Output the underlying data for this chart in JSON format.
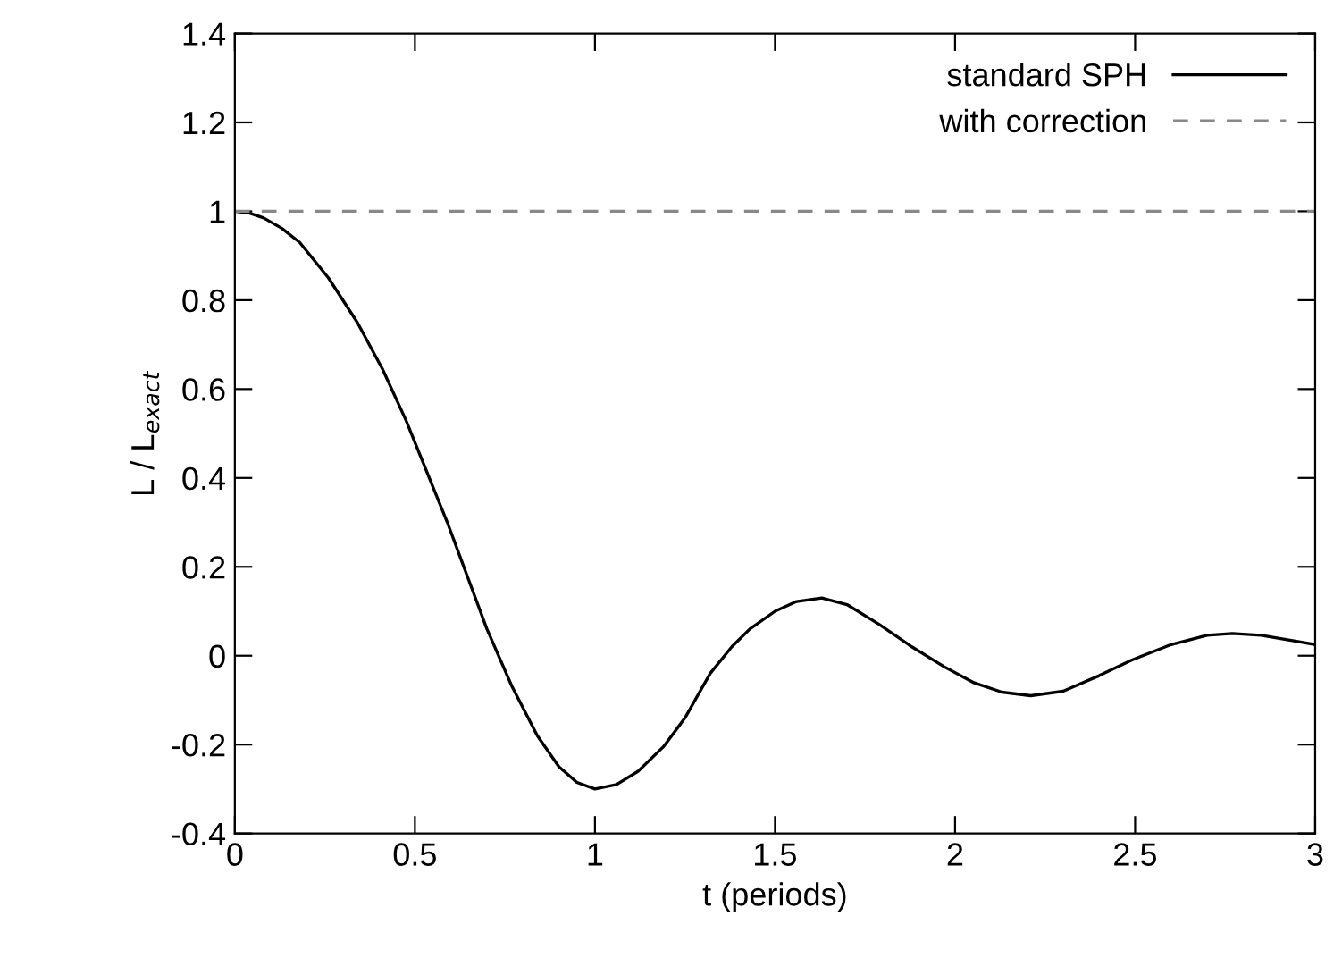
{
  "chart_data": {
    "type": "line",
    "xlabel": "t (periods)",
    "ylabel": "L / L$_{exact}$",
    "xlim": [
      0,
      3
    ],
    "ylim": [
      -0.4,
      1.4
    ],
    "xticks": [
      0,
      0.5,
      1,
      1.5,
      2,
      2.5,
      3
    ],
    "yticks": [
      -0.4,
      -0.2,
      0,
      0.2,
      0.4,
      0.6,
      0.8,
      1,
      1.2,
      1.4
    ],
    "grid": false,
    "legend": "top right",
    "series": [
      {
        "name": "standard SPH",
        "color": "#000000",
        "line_style": "solid",
        "x": [
          0,
          0.04,
          0.08,
          0.13,
          0.18,
          0.26,
          0.34,
          0.41,
          0.475,
          0.53,
          0.59,
          0.645,
          0.7,
          0.77,
          0.84,
          0.9,
          0.95,
          1.0,
          1.06,
          1.12,
          1.19,
          1.25,
          1.32,
          1.38,
          1.43,
          1.5,
          1.56,
          1.63,
          1.7,
          1.79,
          1.88,
          1.97,
          2.05,
          2.13,
          2.21,
          2.3,
          2.4,
          2.49,
          2.6,
          2.7,
          2.77,
          2.85,
          2.93,
          3.0
        ],
        "values": [
          1,
          0.996,
          0.985,
          0.962,
          0.93,
          0.85,
          0.75,
          0.645,
          0.53,
          0.42,
          0.3,
          0.18,
          0.06,
          -0.07,
          -0.18,
          -0.25,
          -0.285,
          -0.3,
          -0.29,
          -0.26,
          -0.205,
          -0.14,
          -0.04,
          0.02,
          0.06,
          0.1,
          0.122,
          0.13,
          0.115,
          0.07,
          0.02,
          -0.025,
          -0.06,
          -0.082,
          -0.09,
          -0.08,
          -0.045,
          -0.01,
          0.025,
          0.046,
          0.05,
          0.046,
          0.035,
          0.025
        ]
      },
      {
        "name": "with correction",
        "color": "#888888",
        "line_style": "dashed",
        "x": [
          0,
          3
        ],
        "values": [
          1,
          1
        ]
      }
    ]
  }
}
